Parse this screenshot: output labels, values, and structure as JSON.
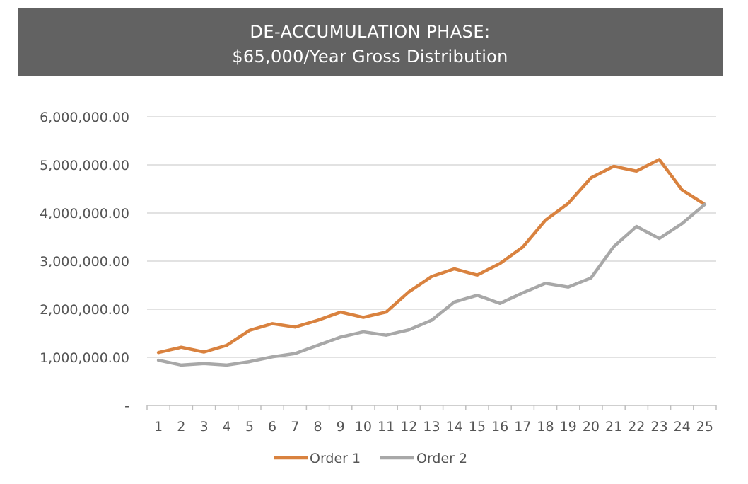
{
  "title": {
    "line1": "DE-ACCUMULATION PHASE:",
    "line2": "$65,000/Year Gross Distribution"
  },
  "chart_data": {
    "type": "line",
    "x": [
      1,
      2,
      3,
      4,
      5,
      6,
      7,
      8,
      9,
      10,
      11,
      12,
      13,
      14,
      15,
      16,
      17,
      18,
      19,
      20,
      21,
      22,
      23,
      24,
      25
    ],
    "ylim": [
      0,
      6000000
    ],
    "yticks": [
      0,
      1000000,
      2000000,
      3000000,
      4000000,
      5000000,
      6000000
    ],
    "ytick_labels": [
      "-",
      "1,000,000.00",
      "2,000,000.00",
      "3,000,000.00",
      "4,000,000.00",
      "5,000,000.00",
      "6,000,000.00"
    ],
    "grid": true,
    "legend_position": "bottom",
    "series": [
      {
        "name": "Order 1",
        "color": "#d9823f",
        "values": [
          1100000,
          1210000,
          1110000,
          1250000,
          1560000,
          1700000,
          1630000,
          1770000,
          1940000,
          1830000,
          1940000,
          2360000,
          2680000,
          2840000,
          2710000,
          2950000,
          3290000,
          3850000,
          4200000,
          4730000,
          4970000,
          4870000,
          5110000,
          4480000,
          4180000
        ]
      },
      {
        "name": "Order 2",
        "color": "#a8a8a8",
        "values": [
          940000,
          840000,
          870000,
          840000,
          910000,
          1010000,
          1080000,
          1250000,
          1420000,
          1530000,
          1460000,
          1570000,
          1770000,
          2150000,
          2290000,
          2120000,
          2340000,
          2540000,
          2460000,
          2650000,
          3300000,
          3720000,
          3470000,
          3780000,
          4180000
        ]
      }
    ]
  }
}
